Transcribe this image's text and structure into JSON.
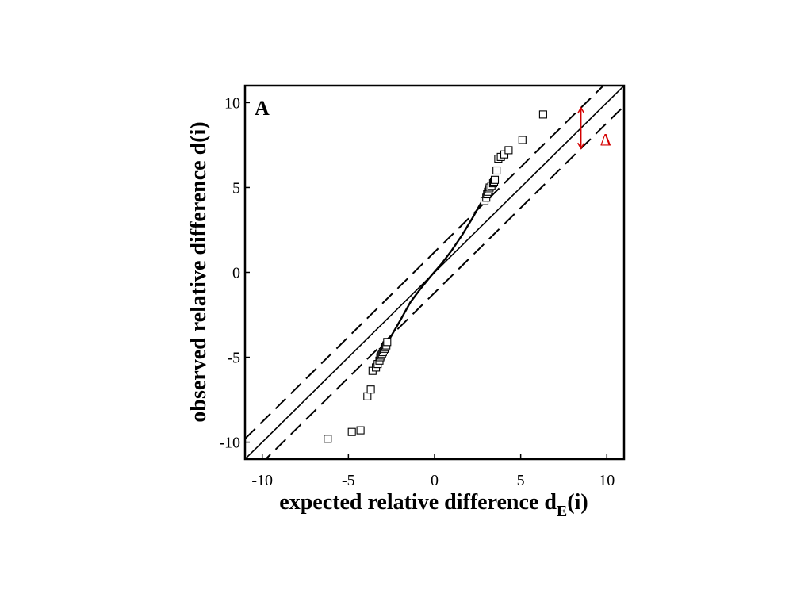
{
  "chart_data": {
    "type": "scatter",
    "panel_label": "A",
    "xlabel": "expected relative difference d",
    "xlabel_sub": "E",
    "xlabel_tail": "(i)",
    "ylabel": "observed relative difference d(i)",
    "xlim": [
      -11,
      11
    ],
    "ylim": [
      -11,
      11
    ],
    "xticks": [
      -10,
      -5,
      0,
      5,
      10
    ],
    "yticks": [
      -10,
      -5,
      0,
      5,
      10
    ],
    "xtick_labels": [
      "-10",
      "-5",
      "0",
      "5",
      "10"
    ],
    "ytick_labels": [
      "-10",
      "-5",
      "0",
      "5",
      "10"
    ],
    "grid": false,
    "delta_label": "Δ",
    "delta": 1.2,
    "annotation_x": 8.5,
    "series": [
      {
        "marker": "open-square",
        "points": [
          [
            -6.2,
            -9.8
          ],
          [
            -4.8,
            -9.4
          ],
          [
            -4.3,
            -9.3
          ],
          [
            -3.9,
            -7.3
          ],
          [
            -3.7,
            -6.9
          ],
          [
            -3.6,
            -5.8
          ],
          [
            -3.4,
            -5.6
          ],
          [
            -3.3,
            -5.4
          ],
          [
            -3.2,
            -5.2
          ],
          [
            -3.15,
            -5.0
          ],
          [
            -3.1,
            -4.9
          ],
          [
            -3.05,
            -4.8
          ],
          [
            -3.0,
            -4.7
          ],
          [
            -2.95,
            -4.6
          ],
          [
            -2.9,
            -4.5
          ],
          [
            -2.85,
            -4.4
          ],
          [
            -2.8,
            -4.3
          ],
          [
            -2.75,
            -4.1
          ],
          [
            2.9,
            4.2
          ],
          [
            3.0,
            4.4
          ],
          [
            3.05,
            4.6
          ],
          [
            3.1,
            4.75
          ],
          [
            3.15,
            4.9
          ],
          [
            3.2,
            5.0
          ],
          [
            3.3,
            5.1
          ],
          [
            3.4,
            5.25
          ],
          [
            3.45,
            5.35
          ],
          [
            3.5,
            5.45
          ],
          [
            3.6,
            6.0
          ],
          [
            3.7,
            6.7
          ],
          [
            3.85,
            6.8
          ],
          [
            4.05,
            6.95
          ],
          [
            4.3,
            7.2
          ],
          [
            5.1,
            7.8
          ],
          [
            6.3,
            9.3
          ]
        ]
      },
      {
        "style": "solid-curve",
        "points": [
          [
            -3.2,
            -4.8
          ],
          [
            -2.6,
            -3.9
          ],
          [
            -2.0,
            -2.85
          ],
          [
            -1.4,
            -1.75
          ],
          [
            -0.8,
            -0.95
          ],
          [
            -0.2,
            -0.2
          ],
          [
            0.4,
            0.5
          ],
          [
            1.0,
            1.3
          ],
          [
            1.6,
            2.2
          ],
          [
            2.2,
            3.2
          ],
          [
            2.7,
            4.1
          ],
          [
            3.0,
            4.6
          ]
        ]
      }
    ],
    "reference_lines": [
      {
        "style": "solid",
        "equation": "y = x"
      },
      {
        "style": "dashed",
        "equation": "y = x + delta"
      },
      {
        "style": "dashed",
        "equation": "y = x - delta"
      }
    ]
  }
}
